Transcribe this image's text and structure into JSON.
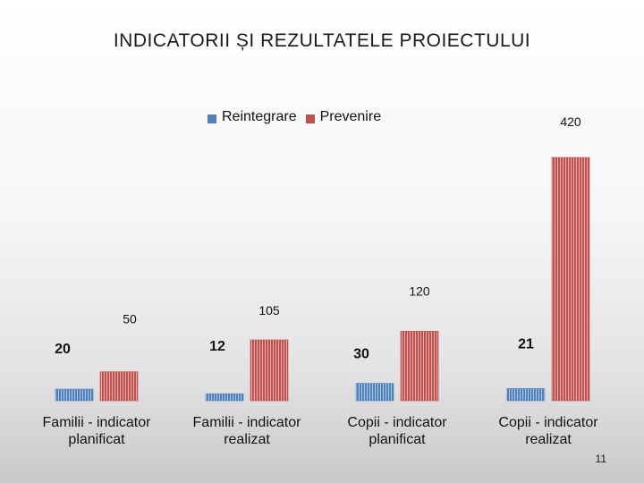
{
  "slide": {
    "title": "INDICATORII ȘI REZULTATELE PROIECTULUI",
    "page_number": "11"
  },
  "colors": {
    "reintegrare": "#4f81bd",
    "prevenire": "#c0504d"
  },
  "chart_data": {
    "type": "bar",
    "title": "",
    "xlabel": "",
    "ylabel": "",
    "categories": [
      "Familii - indicator planificat",
      "Familii - indicator realizat",
      "Copii - indicator planificat",
      "Copii - indicator realizat"
    ],
    "series": [
      {
        "name": "Reintegrare",
        "values": [
          20,
          12,
          30,
          21
        ]
      },
      {
        "name": "Prevenire",
        "values": [
          50,
          105,
          120,
          420
        ]
      }
    ],
    "ylim": [
      0,
      420
    ],
    "grid": false,
    "legend_position": "top"
  }
}
